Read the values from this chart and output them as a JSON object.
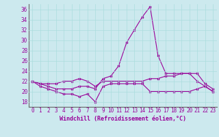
{
  "xlabel": "Windchill (Refroidissement éolien,°C)",
  "ylabel": "",
  "background_color": "#cce9ee",
  "line_color": "#990099",
  "xlim": [
    -0.5,
    23.5
  ],
  "ylim": [
    17.0,
    37.0
  ],
  "yticks": [
    18,
    20,
    22,
    24,
    26,
    28,
    30,
    32,
    34,
    36
  ],
  "xticks": [
    0,
    1,
    2,
    3,
    4,
    5,
    6,
    7,
    8,
    9,
    10,
    11,
    12,
    13,
    14,
    15,
    16,
    17,
    18,
    19,
    20,
    21,
    22,
    23
  ],
  "series": [
    [
      22.0,
      21.0,
      20.5,
      20.0,
      19.5,
      19.5,
      19.0,
      19.5,
      18.0,
      21.0,
      21.5,
      21.5,
      21.5,
      21.5,
      21.5,
      20.0,
      20.0,
      20.0,
      20.0,
      20.0,
      20.0,
      20.5,
      21.0,
      20.0
    ],
    [
      22.0,
      21.5,
      21.5,
      21.5,
      22.0,
      22.0,
      22.5,
      22.0,
      21.0,
      22.0,
      22.0,
      22.0,
      22.0,
      22.0,
      22.0,
      22.5,
      22.5,
      23.0,
      23.0,
      23.5,
      23.5,
      22.0,
      21.0,
      20.0
    ],
    [
      22.0,
      21.5,
      21.0,
      20.5,
      20.5,
      20.5,
      21.0,
      21.0,
      20.5,
      22.5,
      23.0,
      25.0,
      29.5,
      32.0,
      34.5,
      36.5,
      27.0,
      23.5,
      23.5,
      23.5,
      23.5,
      23.5,
      21.5,
      20.5
    ]
  ],
  "grid_color": "#aadddd",
  "tick_fontsize": 5.5,
  "xlabel_fontsize": 6.0
}
